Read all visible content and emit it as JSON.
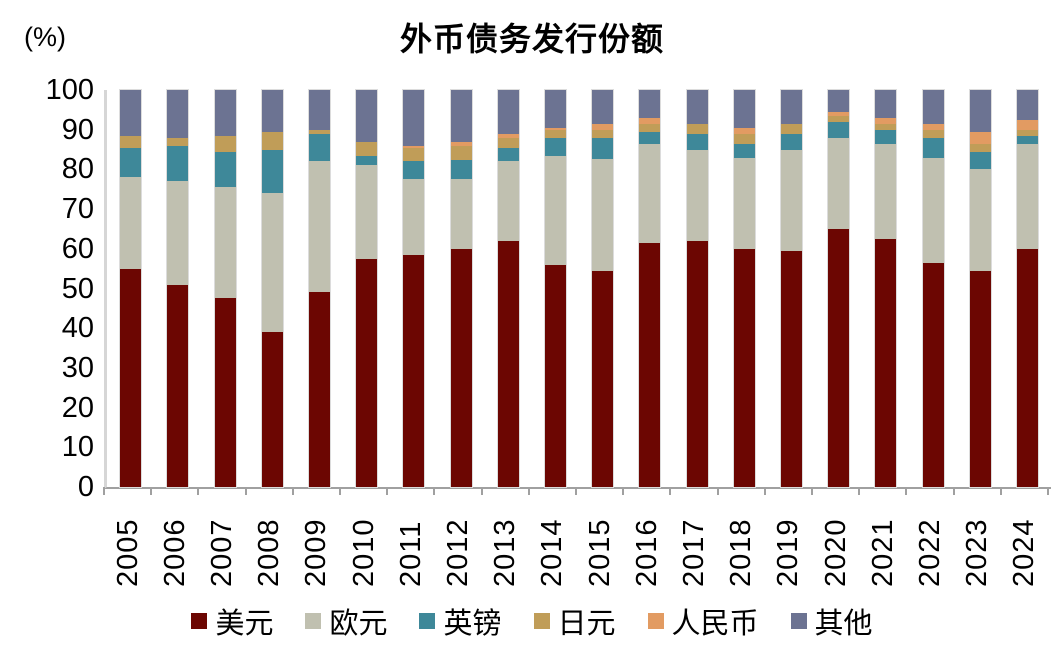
{
  "title": "外币债务发行份额",
  "y_axis_unit": "(%)",
  "chart_data": {
    "type": "bar",
    "stacked": true,
    "percent_stacked": true,
    "title": "外币债务发行份额",
    "ylabel": "(%)",
    "xlabel": "",
    "ylim": [
      0,
      100
    ],
    "y_ticks": [
      0,
      10,
      20,
      30,
      40,
      50,
      60,
      70,
      80,
      90,
      100
    ],
    "grid": false,
    "legend_position": "bottom",
    "categories": [
      "2005",
      "2006",
      "2007",
      "2008",
      "2009",
      "2010",
      "2011",
      "2012",
      "2013",
      "2014",
      "2015",
      "2016",
      "2017",
      "2018",
      "2019",
      "2020",
      "2021",
      "2022",
      "2023",
      "2024"
    ],
    "series": [
      {
        "name": "美元",
        "color": "#6C0602",
        "values": [
          55,
          51,
          47.5,
          39,
          49,
          57.5,
          58.5,
          60,
          62,
          56,
          54.5,
          61.5,
          62,
          60,
          59.5,
          65,
          62.5,
          56.5,
          54.5,
          60
        ]
      },
      {
        "name": "欧元",
        "color": "#C0C0B0",
        "values": [
          23,
          26,
          28,
          35,
          33,
          23.5,
          19,
          17.5,
          20,
          27.5,
          28,
          25,
          23,
          23,
          25.5,
          23,
          24,
          26.5,
          25.5,
          26.5
        ]
      },
      {
        "name": "英镑",
        "color": "#3E8899",
        "values": [
          7.5,
          9,
          9,
          11,
          7,
          2.5,
          4.5,
          5,
          3.5,
          4.5,
          5.5,
          3,
          4,
          3.5,
          4,
          4,
          3.5,
          5,
          4.5,
          2
        ]
      },
      {
        "name": "日元",
        "color": "#C09D58",
        "values": [
          3,
          2,
          4,
          4.5,
          1,
          3.5,
          3.5,
          3.5,
          2.5,
          2,
          2,
          2,
          2.5,
          2.5,
          2.5,
          1.5,
          1.5,
          2,
          2,
          1.5
        ]
      },
      {
        "name": "人民币",
        "color": "#E29B62",
        "values": [
          0,
          0,
          0,
          0,
          0,
          0,
          0.5,
          1,
          1,
          0.5,
          1.5,
          1.5,
          0,
          1.5,
          0,
          1,
          1.5,
          1.5,
          3,
          2.5
        ]
      },
      {
        "name": "其他",
        "color": "#6C7392",
        "values": [
          11.5,
          12,
          11.5,
          10.5,
          10,
          13,
          14,
          13,
          11,
          9.5,
          8.5,
          7,
          8.5,
          9.5,
          8.5,
          5.5,
          7,
          8.5,
          10.5,
          7.5
        ]
      }
    ]
  }
}
